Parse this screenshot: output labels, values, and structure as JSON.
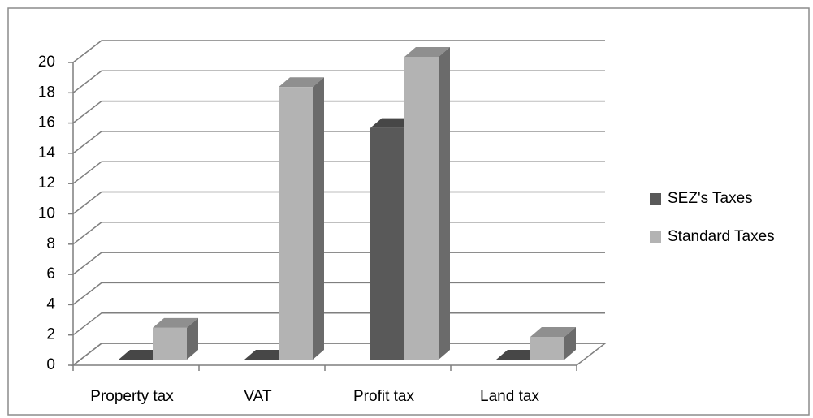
{
  "chart_data": {
    "type": "bar3d",
    "categories": [
      "Property tax",
      "VAT",
      "Profit tax",
      "Land tax"
    ],
    "series": [
      {
        "name": "SEZ's Taxes",
        "color": "#595959",
        "values": [
          0,
          0,
          15.3,
          0
        ]
      },
      {
        "name": "Standard Taxes",
        "color": "#b3b3b3",
        "values": [
          2.1,
          18,
          20,
          1.5
        ]
      }
    ],
    "ylim": [
      0,
      20
    ],
    "yticks": [
      0,
      2,
      4,
      6,
      8,
      10,
      12,
      14,
      16,
      18,
      20
    ],
    "grid": true,
    "legend": "right"
  }
}
